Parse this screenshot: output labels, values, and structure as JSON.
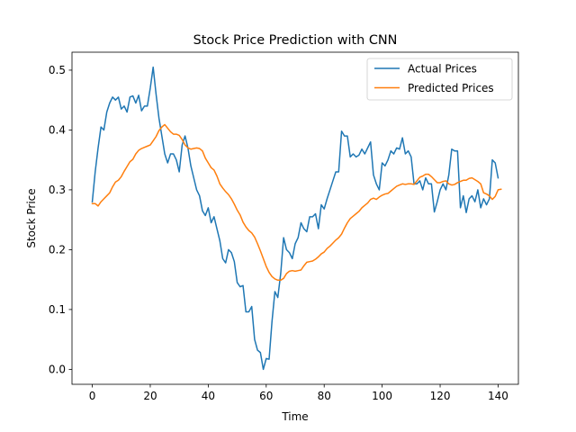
{
  "chart_data": {
    "type": "line",
    "title": "Stock Price Prediction with CNN",
    "xlabel": "Time",
    "ylabel": "Stock Price",
    "xlim": [
      -7,
      147
    ],
    "ylim": [
      -0.025,
      0.53
    ],
    "xticks": [
      0,
      20,
      40,
      60,
      80,
      100,
      120,
      140
    ],
    "yticks": [
      0.0,
      0.1,
      0.2,
      0.3,
      0.4,
      0.5
    ],
    "ytick_labels": [
      "0.0",
      "0.1",
      "0.2",
      "0.3",
      "0.4",
      "0.5"
    ],
    "grid": false,
    "legend_position": "top-right",
    "series": [
      {
        "name": "Actual Prices",
        "color": "#1f77b4",
        "values": [
          0.28,
          0.33,
          0.37,
          0.405,
          0.4,
          0.43,
          0.445,
          0.455,
          0.45,
          0.455,
          0.435,
          0.44,
          0.43,
          0.455,
          0.457,
          0.445,
          0.458,
          0.432,
          0.44,
          0.44,
          0.47,
          0.505,
          0.46,
          0.42,
          0.39,
          0.36,
          0.345,
          0.36,
          0.36,
          0.35,
          0.33,
          0.375,
          0.39,
          0.37,
          0.34,
          0.32,
          0.3,
          0.29,
          0.265,
          0.257,
          0.27,
          0.245,
          0.255,
          0.235,
          0.215,
          0.185,
          0.178,
          0.2,
          0.195,
          0.18,
          0.145,
          0.138,
          0.14,
          0.096,
          0.096,
          0.105,
          0.05,
          0.032,
          0.028,
          0.0,
          0.018,
          0.017,
          0.08,
          0.13,
          0.12,
          0.16,
          0.22,
          0.2,
          0.195,
          0.185,
          0.21,
          0.22,
          0.245,
          0.235,
          0.23,
          0.255,
          0.255,
          0.26,
          0.235,
          0.275,
          0.268,
          0.285,
          0.3,
          0.315,
          0.33,
          0.33,
          0.398,
          0.39,
          0.39,
          0.355,
          0.36,
          0.355,
          0.358,
          0.368,
          0.36,
          0.37,
          0.38,
          0.325,
          0.31,
          0.3,
          0.345,
          0.34,
          0.35,
          0.365,
          0.36,
          0.37,
          0.368,
          0.387,
          0.36,
          0.365,
          0.355,
          0.31,
          0.31,
          0.315,
          0.3,
          0.32,
          0.31,
          0.31,
          0.263,
          0.28,
          0.3,
          0.31,
          0.3,
          0.325,
          0.368,
          0.365,
          0.365,
          0.27,
          0.29,
          0.262,
          0.285,
          0.29,
          0.28,
          0.3,
          0.27,
          0.285,
          0.275,
          0.285,
          0.35,
          0.345,
          0.32
        ]
      },
      {
        "name": "Predicted Prices",
        "color": "#ff7f0e",
        "values": [
          0.277,
          0.277,
          0.273,
          0.28,
          0.285,
          0.29,
          0.295,
          0.305,
          0.313,
          0.316,
          0.322,
          0.331,
          0.339,
          0.347,
          0.351,
          0.36,
          0.366,
          0.369,
          0.371,
          0.373,
          0.375,
          0.382,
          0.389,
          0.399,
          0.405,
          0.409,
          0.403,
          0.397,
          0.393,
          0.393,
          0.391,
          0.384,
          0.375,
          0.37,
          0.368,
          0.369,
          0.37,
          0.369,
          0.365,
          0.353,
          0.345,
          0.337,
          0.333,
          0.323,
          0.31,
          0.303,
          0.297,
          0.292,
          0.285,
          0.276,
          0.266,
          0.258,
          0.246,
          0.238,
          0.232,
          0.228,
          0.221,
          0.21,
          0.198,
          0.185,
          0.172,
          0.162,
          0.155,
          0.151,
          0.149,
          0.149,
          0.152,
          0.16,
          0.164,
          0.165,
          0.164,
          0.165,
          0.166,
          0.173,
          0.179,
          0.18,
          0.181,
          0.184,
          0.188,
          0.193,
          0.196,
          0.202,
          0.206,
          0.211,
          0.216,
          0.22,
          0.226,
          0.236,
          0.245,
          0.252,
          0.256,
          0.26,
          0.264,
          0.27,
          0.274,
          0.278,
          0.284,
          0.286,
          0.284,
          0.288,
          0.291,
          0.293,
          0.294,
          0.298,
          0.302,
          0.306,
          0.308,
          0.31,
          0.309,
          0.31,
          0.31,
          0.309,
          0.315,
          0.321,
          0.323,
          0.326,
          0.326,
          0.322,
          0.317,
          0.312,
          0.312,
          0.314,
          0.315,
          0.31,
          0.308,
          0.309,
          0.312,
          0.314,
          0.316,
          0.316,
          0.319,
          0.32,
          0.317,
          0.314,
          0.31,
          0.295,
          0.293,
          0.29,
          0.284,
          0.289,
          0.3,
          0.301
        ]
      }
    ]
  }
}
